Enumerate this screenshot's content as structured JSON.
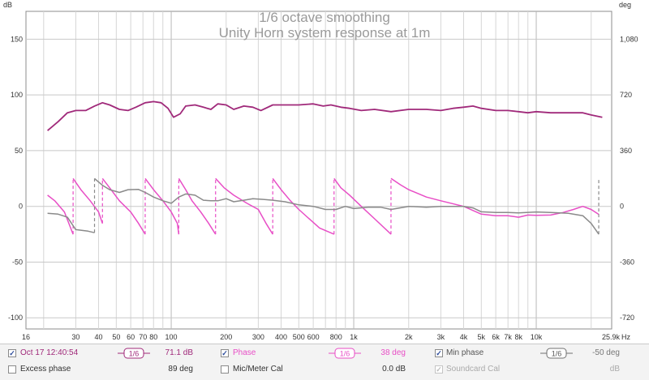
{
  "chart_data": {
    "type": "line",
    "title": "1/6 octave smoothing",
    "subtitle": "Unity Horn system response at 1m",
    "x_scale": "log",
    "x_range_hz": [
      16,
      25900
    ],
    "x_ticks": [
      {
        "v": 16,
        "label": "16"
      },
      {
        "v": 30,
        "label": "30"
      },
      {
        "v": 40,
        "label": "40"
      },
      {
        "v": 50,
        "label": "50"
      },
      {
        "v": 60,
        "label": "60"
      },
      {
        "v": 70,
        "label": "70"
      },
      {
        "v": 80,
        "label": "80"
      },
      {
        "v": 100,
        "label": "100"
      },
      {
        "v": 200,
        "label": "200"
      },
      {
        "v": 300,
        "label": "300"
      },
      {
        "v": 400,
        "label": "400"
      },
      {
        "v": 500,
        "label": "500"
      },
      {
        "v": 600,
        "label": "600"
      },
      {
        "v": 800,
        "label": "800"
      },
      {
        "v": 1000,
        "label": "1k"
      },
      {
        "v": 2000,
        "label": "2k"
      },
      {
        "v": 3000,
        "label": "3k"
      },
      {
        "v": 4000,
        "label": "4k"
      },
      {
        "v": 5000,
        "label": "5k"
      },
      {
        "v": 6000,
        "label": "6k"
      },
      {
        "v": 7000,
        "label": "7k"
      },
      {
        "v": 8000,
        "label": "8k"
      },
      {
        "v": 10000,
        "label": "10k"
      },
      {
        "v": 25900,
        "label": "25.9k"
      }
    ],
    "x_unit": "Hz",
    "y_left": {
      "unit": "dB",
      "range": [
        -110,
        175
      ],
      "ticks": [
        150,
        100,
        50,
        0,
        -50,
        -100
      ],
      "tick_labels": [
        "150",
        "100",
        "50",
        "0",
        "-50",
        "-100"
      ]
    },
    "y_right": {
      "unit": "deg",
      "range": [
        -792,
        1260
      ],
      "ticks": [
        1080,
        720,
        360,
        0,
        -360,
        -720
      ],
      "tick_labels": [
        "1,080",
        "720",
        "360",
        "0",
        "-360",
        "-720"
      ]
    },
    "grid": true,
    "series": [
      {
        "name": "Oct 17 12:40:54",
        "color": "#a0297a",
        "axis": "left",
        "points": [
          [
            21,
            68
          ],
          [
            24,
            76
          ],
          [
            27,
            84
          ],
          [
            30,
            86
          ],
          [
            34,
            86
          ],
          [
            38,
            90
          ],
          [
            42,
            93
          ],
          [
            46,
            91
          ],
          [
            52,
            87
          ],
          [
            58,
            86
          ],
          [
            64,
            89
          ],
          [
            72,
            93
          ],
          [
            80,
            94
          ],
          [
            88,
            93
          ],
          [
            96,
            88
          ],
          [
            103,
            80
          ],
          [
            112,
            83
          ],
          [
            120,
            90
          ],
          [
            135,
            91
          ],
          [
            150,
            89
          ],
          [
            165,
            87
          ],
          [
            180,
            92
          ],
          [
            200,
            91
          ],
          [
            220,
            87
          ],
          [
            250,
            90
          ],
          [
            280,
            89
          ],
          [
            310,
            86
          ],
          [
            360,
            91
          ],
          [
            420,
            91
          ],
          [
            500,
            91
          ],
          [
            600,
            92
          ],
          [
            680,
            90
          ],
          [
            750,
            91
          ],
          [
            850,
            89
          ],
          [
            950,
            88
          ],
          [
            1100,
            86
          ],
          [
            1300,
            87
          ],
          [
            1600,
            85
          ],
          [
            2000,
            87
          ],
          [
            2500,
            87
          ],
          [
            3000,
            86
          ],
          [
            3500,
            88
          ],
          [
            4000,
            89
          ],
          [
            4500,
            90
          ],
          [
            5000,
            88
          ],
          [
            6000,
            86
          ],
          [
            7000,
            86
          ],
          [
            8000,
            85
          ],
          [
            9000,
            84
          ],
          [
            10000,
            85
          ],
          [
            12000,
            84
          ],
          [
            15000,
            84
          ],
          [
            18000,
            84
          ],
          [
            20000,
            82
          ],
          [
            23000,
            80
          ]
        ]
      },
      {
        "name": "Phase",
        "color": "#e84ec6",
        "axis": "right",
        "dashed_wraps": true,
        "points": [
          [
            21,
            72
          ],
          [
            23,
            36
          ],
          [
            26,
            -36
          ],
          [
            29,
            -180
          ],
          [
            29,
            180
          ],
          [
            32,
            108
          ],
          [
            36,
            36
          ],
          [
            40,
            -36
          ],
          [
            42,
            -110
          ],
          [
            42,
            180
          ],
          [
            46,
            120
          ],
          [
            52,
            36
          ],
          [
            60,
            -36
          ],
          [
            66,
            -108
          ],
          [
            72,
            -180
          ],
          [
            72,
            180
          ],
          [
            80,
            108
          ],
          [
            90,
            36
          ],
          [
            100,
            -36
          ],
          [
            108,
            -110
          ],
          [
            110,
            -180
          ],
          [
            110,
            180
          ],
          [
            120,
            108
          ],
          [
            130,
            36
          ],
          [
            145,
            -36
          ],
          [
            160,
            -108
          ],
          [
            175,
            -180
          ],
          [
            175,
            180
          ],
          [
            195,
            120
          ],
          [
            220,
            72
          ],
          [
            260,
            20
          ],
          [
            300,
            -20
          ],
          [
            330,
            -108
          ],
          [
            360,
            -180
          ],
          [
            360,
            180
          ],
          [
            400,
            108
          ],
          [
            450,
            36
          ],
          [
            500,
            -20
          ],
          [
            560,
            -72
          ],
          [
            650,
            -140
          ],
          [
            780,
            -180
          ],
          [
            780,
            180
          ],
          [
            850,
            120
          ],
          [
            950,
            72
          ],
          [
            1100,
            0
          ],
          [
            1300,
            -80
          ],
          [
            1600,
            -180
          ],
          [
            1600,
            180
          ],
          [
            1800,
            140
          ],
          [
            2000,
            108
          ],
          [
            2500,
            60
          ],
          [
            3000,
            36
          ],
          [
            4000,
            0
          ],
          [
            5000,
            -50
          ],
          [
            6000,
            -60
          ],
          [
            7000,
            -60
          ],
          [
            8000,
            -70
          ],
          [
            9000,
            -56
          ],
          [
            10000,
            -58
          ],
          [
            12000,
            -56
          ],
          [
            14000,
            -40
          ],
          [
            16000,
            -20
          ],
          [
            18000,
            0
          ],
          [
            20000,
            -20
          ],
          [
            22000,
            -52
          ]
        ]
      },
      {
        "name": "Min phase",
        "color": "#8a8a8a",
        "axis": "right",
        "dashed_wraps": true,
        "points": [
          [
            21,
            -45
          ],
          [
            24,
            -50
          ],
          [
            27,
            -70
          ],
          [
            30,
            -150
          ],
          [
            35,
            -160
          ],
          [
            38,
            -170
          ],
          [
            38,
            180
          ],
          [
            42,
            136
          ],
          [
            46,
            108
          ],
          [
            52,
            90
          ],
          [
            58,
            108
          ],
          [
            66,
            110
          ],
          [
            72,
            90
          ],
          [
            80,
            60
          ],
          [
            90,
            36
          ],
          [
            100,
            20
          ],
          [
            110,
            60
          ],
          [
            120,
            80
          ],
          [
            135,
            72
          ],
          [
            150,
            40
          ],
          [
            165,
            36
          ],
          [
            180,
            36
          ],
          [
            200,
            50
          ],
          [
            220,
            30
          ],
          [
            250,
            40
          ],
          [
            280,
            50
          ],
          [
            320,
            45
          ],
          [
            360,
            40
          ],
          [
            420,
            30
          ],
          [
            500,
            10
          ],
          [
            600,
            0
          ],
          [
            700,
            -20
          ],
          [
            800,
            -20
          ],
          [
            900,
            0
          ],
          [
            1000,
            -14
          ],
          [
            1200,
            -5
          ],
          [
            1400,
            -5
          ],
          [
            1600,
            -20
          ],
          [
            2000,
            0
          ],
          [
            2500,
            -5
          ],
          [
            3000,
            0
          ],
          [
            4000,
            0
          ],
          [
            4500,
            -10
          ],
          [
            5000,
            -35
          ],
          [
            6000,
            -40
          ],
          [
            7000,
            -40
          ],
          [
            8000,
            -42
          ],
          [
            10000,
            -36
          ],
          [
            12000,
            -40
          ],
          [
            15000,
            -45
          ],
          [
            18000,
            -60
          ],
          [
            20000,
            -110
          ],
          [
            22000,
            -180
          ],
          [
            22000,
            180
          ]
        ]
      }
    ]
  },
  "legend": {
    "row1": [
      {
        "checked": "✓",
        "label": "Oct 17 12:40:54",
        "smoothing": "1/6",
        "value": "71.1 dB",
        "color": "#a0297a"
      },
      {
        "checked": "✓",
        "label": "Phase",
        "smoothing": "1/6",
        "value": "38 deg",
        "color": "#e84ec6"
      },
      {
        "checked": "✓",
        "label": "Min phase",
        "smoothing": "1/6",
        "value": "-50 deg",
        "color": "#8a8a8a"
      }
    ],
    "row2": [
      {
        "checked": "",
        "label": "Excess phase",
        "value": "89 deg"
      },
      {
        "checked": "",
        "label": "Mic/Meter Cal",
        "value": "0.0 dB"
      },
      {
        "checked": "✓",
        "label": "Soundcard Cal",
        "value": "dB"
      }
    ]
  }
}
